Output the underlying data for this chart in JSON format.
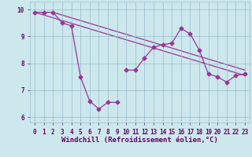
{
  "xlabel": "Windchill (Refroidissement éolien,°C)",
  "bg_color": "#cce8ec",
  "line_color": "#993399",
  "grid_color": "#99bbcc",
  "xlim": [
    -0.5,
    23.5
  ],
  "ylim": [
    5.8,
    10.3
  ],
  "yticks": [
    6,
    7,
    8,
    9,
    10
  ],
  "xticks": [
    0,
    1,
    2,
    3,
    4,
    5,
    6,
    7,
    8,
    9,
    10,
    11,
    12,
    13,
    14,
    15,
    16,
    17,
    18,
    19,
    20,
    21,
    22,
    23
  ],
  "series1": [
    [
      0,
      9.9
    ],
    [
      1,
      9.9
    ],
    [
      2,
      9.9
    ],
    [
      3,
      9.5
    ],
    [
      4,
      9.4
    ],
    [
      5,
      7.5
    ],
    [
      6,
      6.6
    ],
    [
      7,
      6.3
    ],
    [
      8,
      6.55
    ],
    [
      9,
      6.55
    ]
  ],
  "series2": [
    [
      10,
      7.75
    ],
    [
      11,
      7.75
    ],
    [
      12,
      8.2
    ],
    [
      13,
      8.6
    ],
    [
      14,
      8.7
    ],
    [
      15,
      8.75
    ],
    [
      16,
      9.3
    ],
    [
      17,
      9.1
    ],
    [
      18,
      8.5
    ],
    [
      19,
      7.6
    ],
    [
      20,
      7.5
    ],
    [
      21,
      7.3
    ],
    [
      22,
      7.55
    ],
    [
      23,
      7.6
    ]
  ],
  "trendline1": [
    [
      0,
      9.9
    ],
    [
      23,
      7.55
    ]
  ],
  "trendline2": [
    [
      2,
      9.9
    ],
    [
      23,
      7.75
    ]
  ],
  "marker": "D",
  "marker_size": 2.5,
  "linewidth": 0.9,
  "font_color": "#660066",
  "tick_fontsize": 5.5,
  "label_fontsize": 6.5
}
